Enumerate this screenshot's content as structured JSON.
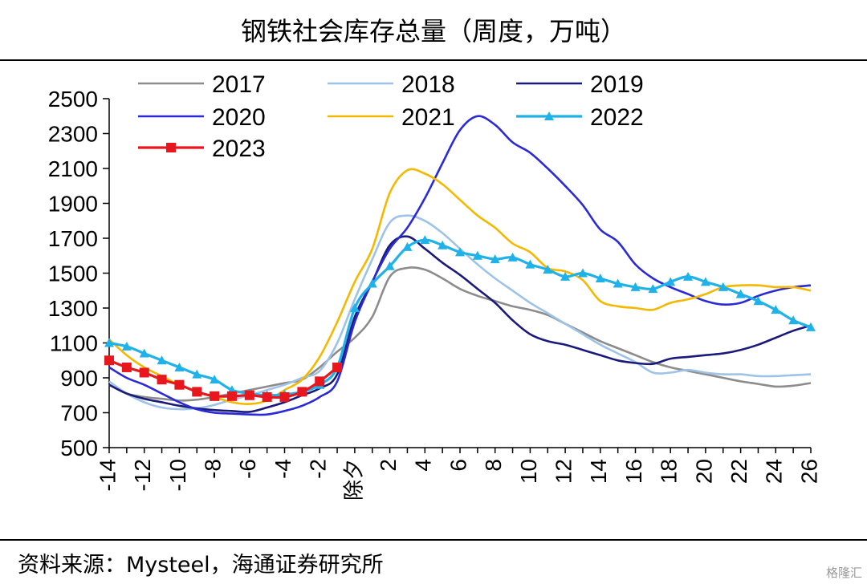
{
  "header": {
    "title": "钢铁社会库存总量（周度，万吨）"
  },
  "footer": {
    "source": "资料来源：Mysteel，海通证券研究所",
    "watermark": "格隆汇"
  },
  "chart_data": {
    "type": "line",
    "title": "钢铁社会库存总量（周度，万吨）",
    "xlabel": "",
    "ylabel": "",
    "ylim": [
      500,
      2500
    ],
    "y_ticks": [
      500,
      700,
      900,
      1100,
      1300,
      1500,
      1700,
      1900,
      2100,
      2300,
      2500
    ],
    "x_range": [
      -14,
      26
    ],
    "x_tick_positions": [
      -14,
      -12,
      -10,
      -8,
      -6,
      -4,
      -2,
      0,
      2,
      4,
      6,
      8,
      10,
      12,
      14,
      16,
      18,
      20,
      22,
      24,
      26
    ],
    "x_tick_labels": [
      "-14",
      "-12",
      "-10",
      "-8",
      "-6",
      "-4",
      "-2",
      "除夕",
      "2",
      "4",
      "6",
      "8",
      "10",
      "12",
      "14",
      "16",
      "18",
      "20",
      "22",
      "24",
      "26"
    ],
    "grid": false,
    "legend": "top",
    "series": [
      {
        "name": "2017",
        "color": "#8c8c8c",
        "marker": "none",
        "x": [
          -14,
          -13,
          -12,
          -11,
          -10,
          -9,
          -8,
          -7,
          -6,
          -5,
          -4,
          -3,
          -2,
          -1,
          0,
          1,
          2,
          3,
          4,
          5,
          6,
          7,
          8,
          9,
          10,
          11,
          12,
          13,
          14,
          15,
          16,
          17,
          18,
          19,
          20,
          21,
          22,
          23,
          24,
          25,
          26
        ],
        "values": [
          860,
          810,
          790,
          780,
          770,
          775,
          790,
          810,
          830,
          850,
          870,
          890,
          960,
          1050,
          1130,
          1250,
          1480,
          1530,
          1520,
          1470,
          1410,
          1370,
          1340,
          1310,
          1290,
          1260,
          1210,
          1160,
          1110,
          1070,
          1030,
          990,
          960,
          940,
          920,
          900,
          880,
          865,
          850,
          855,
          870
        ]
      },
      {
        "name": "2018",
        "color": "#9ec3e6",
        "marker": "none",
        "x": [
          -14,
          -13,
          -12,
          -11,
          -10,
          -9,
          -8,
          -7,
          -6,
          -5,
          -4,
          -3,
          -2,
          -1,
          0,
          1,
          2,
          3,
          4,
          5,
          6,
          7,
          8,
          9,
          10,
          11,
          12,
          13,
          14,
          15,
          16,
          17,
          18,
          19,
          20,
          21,
          22,
          23,
          24,
          25,
          26
        ],
        "values": [
          880,
          810,
          760,
          730,
          720,
          725,
          745,
          775,
          800,
          830,
          860,
          900,
          940,
          1100,
          1350,
          1580,
          1790,
          1830,
          1800,
          1730,
          1640,
          1550,
          1470,
          1400,
          1330,
          1270,
          1210,
          1150,
          1090,
          1040,
          990,
          930,
          930,
          945,
          930,
          920,
          920,
          910,
          910,
          915,
          920
        ]
      },
      {
        "name": "2019",
        "color": "#1a1a7a",
        "marker": "none",
        "x": [
          -14,
          -13,
          -12,
          -11,
          -10,
          -9,
          -8,
          -7,
          -6,
          -5,
          -4,
          -3,
          -2,
          -1,
          0,
          1,
          2,
          3,
          4,
          5,
          6,
          7,
          8,
          9,
          10,
          11,
          12,
          13,
          14,
          15,
          16,
          17,
          18,
          19,
          20,
          21,
          22,
          23,
          24,
          25,
          26
        ],
        "values": [
          860,
          810,
          780,
          760,
          740,
          725,
          715,
          710,
          705,
          730,
          760,
          800,
          840,
          920,
          1250,
          1450,
          1660,
          1710,
          1640,
          1560,
          1490,
          1410,
          1330,
          1230,
          1150,
          1110,
          1090,
          1060,
          1030,
          1000,
          985,
          980,
          1010,
          1020,
          1030,
          1040,
          1060,
          1090,
          1130,
          1170,
          1200
        ]
      },
      {
        "name": "2020",
        "color": "#2a2ad6",
        "marker": "none",
        "x": [
          -14,
          -13,
          -12,
          -11,
          -10,
          -9,
          -8,
          -7,
          -6,
          -5,
          -4,
          -3,
          -2,
          -1,
          0,
          1,
          2,
          3,
          4,
          5,
          6,
          7,
          8,
          9,
          10,
          11,
          12,
          13,
          14,
          15,
          16,
          17,
          18,
          19,
          20,
          21,
          22,
          23,
          24,
          25,
          26
        ],
        "values": [
          960,
          900,
          860,
          810,
          760,
          720,
          700,
          695,
          690,
          690,
          710,
          740,
          790,
          880,
          1220,
          1450,
          1640,
          1760,
          1930,
          2130,
          2320,
          2400,
          2350,
          2250,
          2190,
          2100,
          2000,
          1890,
          1750,
          1680,
          1550,
          1470,
          1420,
          1380,
          1340,
          1320,
          1330,
          1370,
          1400,
          1420,
          1430
        ]
      },
      {
        "name": "2021",
        "color": "#f5b800",
        "marker": "none",
        "x": [
          -14,
          -13,
          -12,
          -11,
          -10,
          -9,
          -8,
          -7,
          -6,
          -5,
          -4,
          -3,
          -2,
          -1,
          0,
          1,
          2,
          3,
          4,
          5,
          6,
          7,
          8,
          9,
          10,
          11,
          12,
          13,
          14,
          15,
          16,
          17,
          18,
          19,
          20,
          21,
          22,
          23,
          24,
          25,
          26
        ],
        "values": [
          1120,
          1030,
          960,
          910,
          860,
          820,
          790,
          760,
          750,
          770,
          830,
          890,
          1020,
          1220,
          1450,
          1640,
          1960,
          2090,
          2070,
          2010,
          1920,
          1830,
          1760,
          1670,
          1620,
          1530,
          1510,
          1460,
          1340,
          1310,
          1300,
          1290,
          1330,
          1350,
          1380,
          1420,
          1430,
          1430,
          1420,
          1420,
          1400
        ]
      },
      {
        "name": "2022",
        "color": "#1fb2e8",
        "marker": "triangle",
        "x": [
          -14,
          -13,
          -12,
          -11,
          -10,
          -9,
          -8,
          -7,
          -6,
          -5,
          -4,
          -3,
          -2,
          -1,
          0,
          1,
          2,
          3,
          4,
          5,
          6,
          7,
          8,
          9,
          10,
          11,
          12,
          13,
          14,
          15,
          16,
          17,
          18,
          19,
          20,
          21,
          22,
          23,
          24,
          25,
          26
        ],
        "values": [
          1100,
          1080,
          1040,
          1000,
          960,
          920,
          890,
          830,
          810,
          800,
          805,
          820,
          860,
          960,
          1300,
          1440,
          1540,
          1650,
          1690,
          1660,
          1620,
          1600,
          1580,
          1590,
          1550,
          1520,
          1480,
          1500,
          1470,
          1440,
          1420,
          1410,
          1450,
          1480,
          1450,
          1420,
          1380,
          1340,
          1290,
          1230,
          1190
        ]
      },
      {
        "name": "2023",
        "color": "#e8171e",
        "marker": "square",
        "x": [
          -14,
          -13,
          -12,
          -11,
          -10,
          -9,
          -8,
          -7,
          -6,
          -5,
          -4,
          -3,
          -2,
          -1
        ],
        "values": [
          1000,
          960,
          930,
          890,
          860,
          820,
          795,
          795,
          800,
          790,
          790,
          820,
          880,
          960
        ]
      }
    ]
  }
}
